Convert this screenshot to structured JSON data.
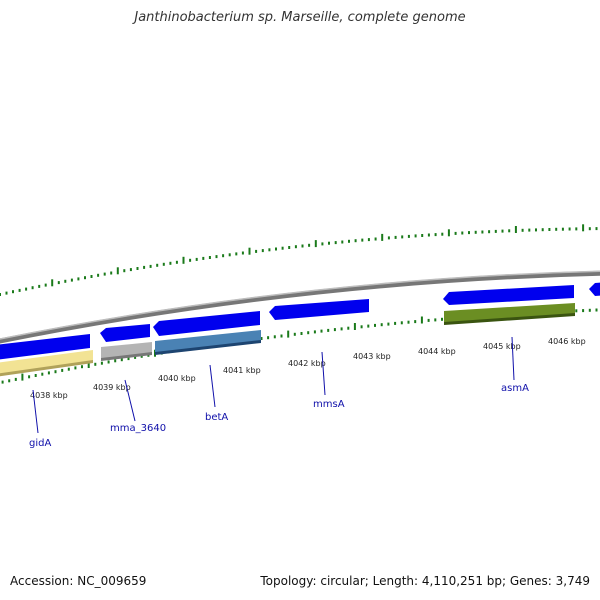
{
  "title": "Janthinobacterium sp. Marseille, complete genome",
  "footer": {
    "accession": "Accession: NC_009659",
    "summary": "Topology: circular; Length: 4,110,251 bp; Genes: 3,749"
  },
  "colors": {
    "cds": "#0000ee",
    "backbone": "#888888",
    "ticks": "#1a7a1a",
    "label": "#1010aa"
  },
  "scale_labels": [
    "4038 kbp",
    "4039 kbp",
    "4040 kbp",
    "4041 kbp",
    "4042 kbp",
    "4043 kbp",
    "4044 kbp",
    "4045 kbp",
    "4046 kbp"
  ],
  "genes": [
    {
      "name": "gidA",
      "function_color": "#f2e394"
    },
    {
      "name": "mma_3640",
      "function_color": "#b4b4b4"
    },
    {
      "name": "betA",
      "function_color": "#4a82b4"
    },
    {
      "name": "mmsA",
      "function_color": ""
    },
    {
      "name": "asmA",
      "function_color": "#6b8e23"
    }
  ]
}
